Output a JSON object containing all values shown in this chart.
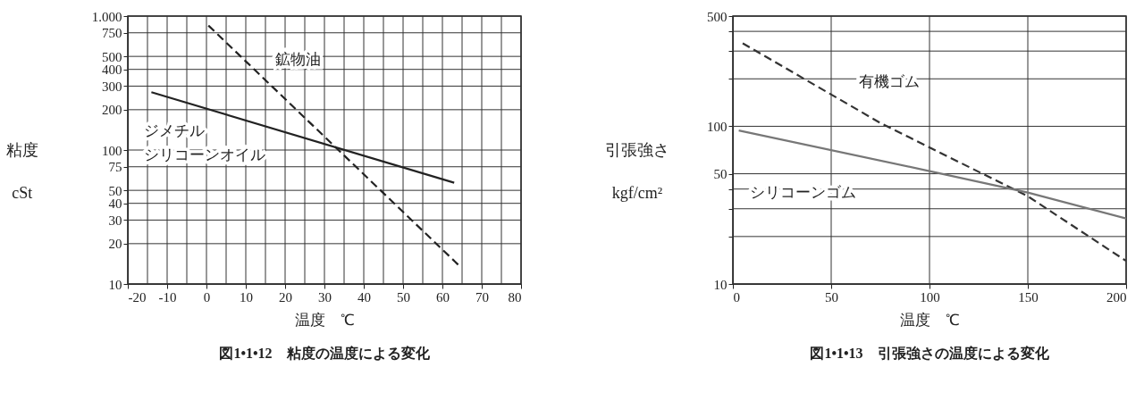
{
  "chart_data": [
    {
      "type": "line",
      "title": "図1•1•12　粘度の温度による変化",
      "xlabel": "温度　℃",
      "ylabel": "粘度 cSt",
      "log": "y",
      "grid": true,
      "xlim": [
        -20,
        80
      ],
      "xticks": [
        -20,
        {
          "value": -15,
          "label": null
        },
        -10,
        {
          "value": -5,
          "label": null
        },
        0,
        {
          "value": 5,
          "label": null
        },
        10,
        {
          "value": 15,
          "label": null
        },
        20,
        {
          "value": 25,
          "label": null
        },
        30,
        {
          "value": 35,
          "label": null
        },
        40,
        {
          "value": 45,
          "label": null
        },
        50,
        {
          "value": 55,
          "label": null
        },
        60,
        {
          "value": 65,
          "label": null
        },
        70,
        {
          "value": 75,
          "label": null
        },
        80
      ],
      "ylim": [
        10,
        1000
      ],
      "yticks": [
        10,
        20,
        30,
        40,
        50,
        75,
        100,
        200,
        300,
        400,
        500,
        750,
        {
          "value": 1000,
          "label": "1.000"
        }
      ],
      "series": [
        {
          "name": "ジメチルシリコーンオイル",
          "color": "#222222",
          "line_style": "solid",
          "x": [
            -14,
            63
          ],
          "values": [
            270,
            57
          ]
        },
        {
          "name": "鉱物油",
          "color": "#222222",
          "line_style": "dashed",
          "x": [
            0.5,
            64.5
          ],
          "values": [
            850,
            13.5
          ]
        }
      ]
    },
    {
      "type": "line",
      "title": "図1•1•13　引張強さの温度による変化",
      "xlabel": "温度　℃",
      "ylabel": "引張強さ kgf/cm²",
      "log": "y",
      "grid": true,
      "xlim": [
        0,
        200
      ],
      "xticks": [
        0,
        50,
        100,
        150,
        200
      ],
      "ylim": [
        10,
        500
      ],
      "yticks": [
        10,
        {
          "value": 20,
          "label": null
        },
        {
          "value": 30,
          "label": null
        },
        {
          "value": 40,
          "label": null
        },
        50,
        100,
        {
          "value": 200,
          "label": null
        },
        {
          "value": 300,
          "label": null
        },
        {
          "value": 400,
          "label": null
        },
        500
      ],
      "series": [
        {
          "name": "有機ゴム",
          "color": "#333333",
          "line_style": "dashed",
          "x": [
            5,
            75,
            150,
            200
          ],
          "values": [
            336,
            105,
            36,
            14
          ]
        },
        {
          "name": "シリコーンゴム",
          "color": "#777777",
          "line_style": "solid",
          "x": [
            3,
            100,
            150,
            200
          ],
          "values": [
            94,
            52,
            38,
            26
          ]
        }
      ]
    }
  ]
}
